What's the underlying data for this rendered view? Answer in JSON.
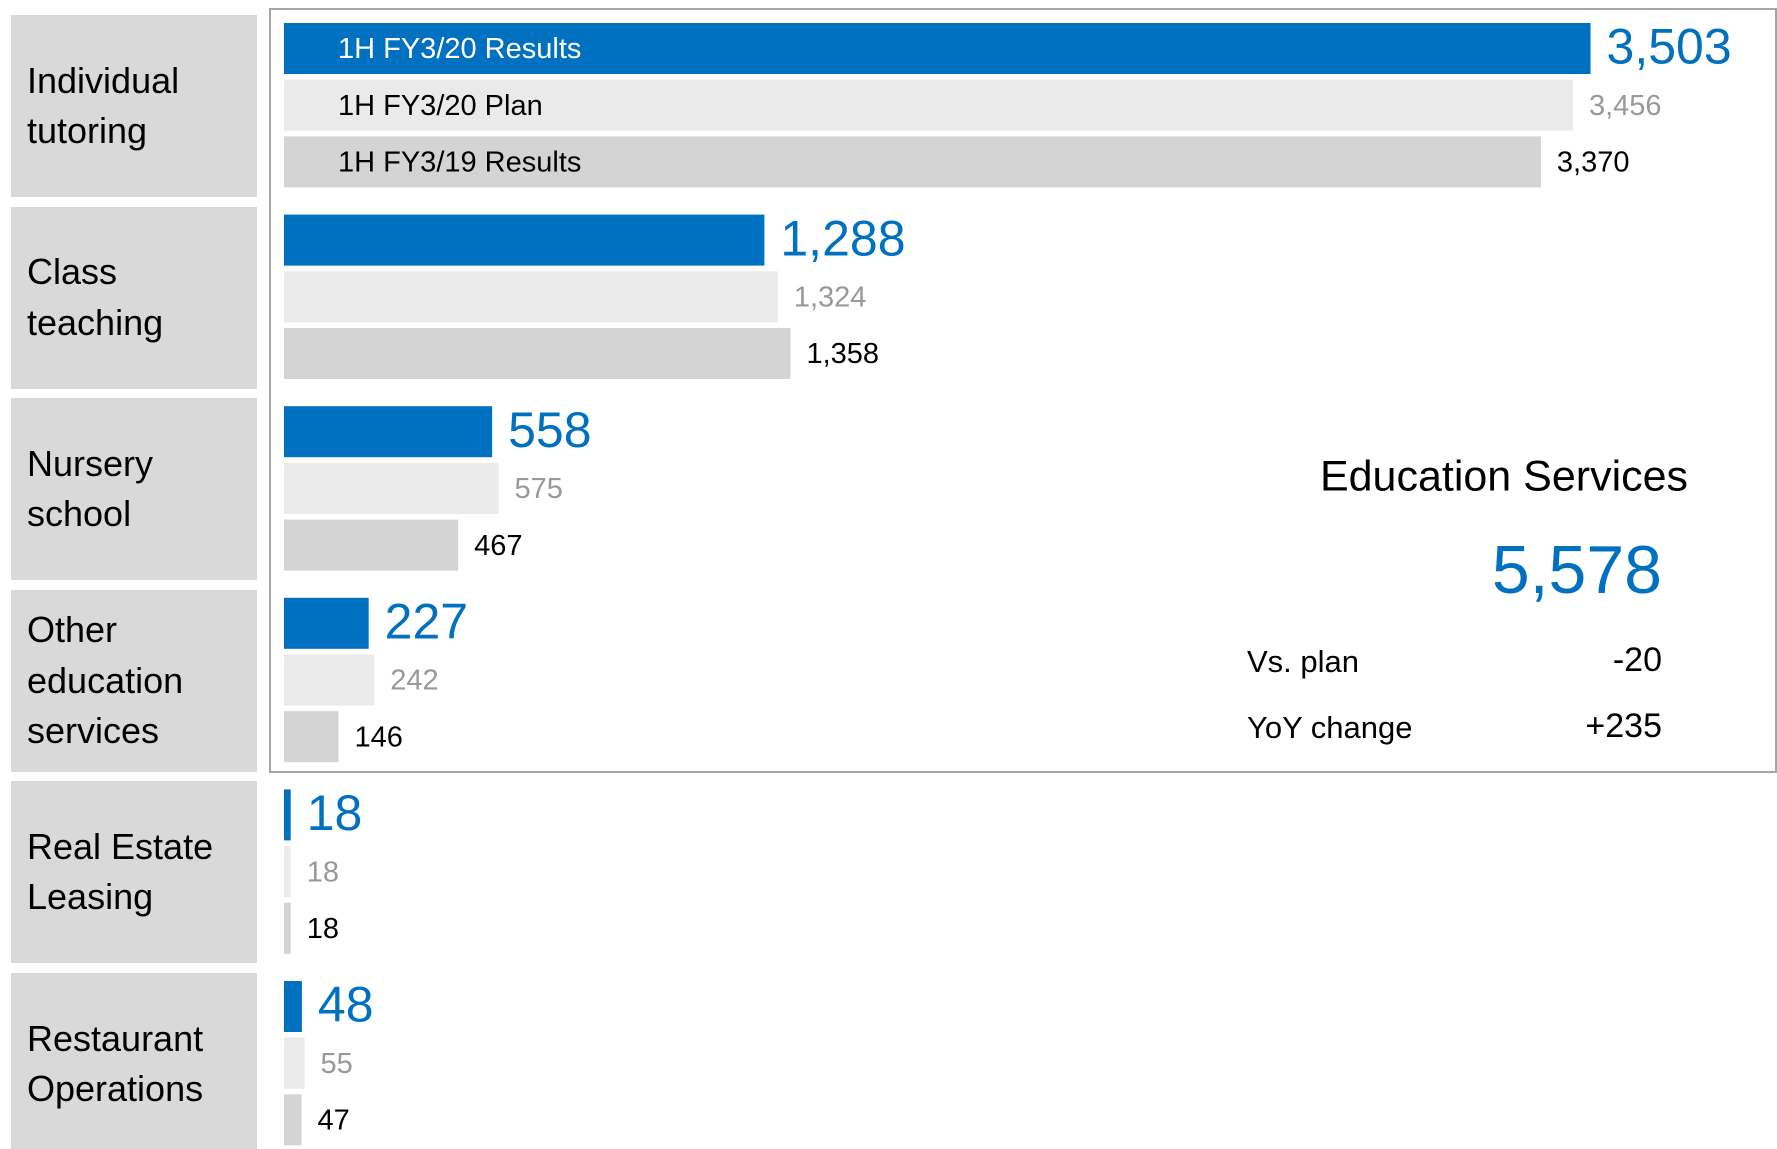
{
  "chart_data": {
    "type": "bar",
    "orientation": "horizontal",
    "categories": [
      "Individual tutoring",
      "Class teaching",
      "Nursery school",
      "Other education services",
      "Real Estate Leasing",
      "Restaurant Operations"
    ],
    "series": [
      {
        "name": "1H FY3/20 Results",
        "color": "#0070c0",
        "label_color": "#0070c0",
        "values": [
          3503,
          1288,
          558,
          227,
          18,
          48
        ],
        "value_labels": [
          "3,503",
          "1,288",
          "558",
          "227",
          "18",
          "48"
        ]
      },
      {
        "name": "1H FY3/20 Plan",
        "color": "#eaeaea",
        "label_color": "#999999",
        "values": [
          3456,
          1324,
          575,
          242,
          18,
          55
        ],
        "value_labels": [
          "3,456",
          "1,324",
          "575",
          "242",
          "18",
          "55"
        ]
      },
      {
        "name": "1H FY3/19 Results",
        "color": "#d4d4d4",
        "label_color": "#000000",
        "values": [
          3370,
          1358,
          467,
          146,
          18,
          47
        ],
        "value_labels": [
          "3,370",
          "1,358",
          "467",
          "146",
          "18",
          "47"
        ]
      }
    ],
    "xlim": [
      0,
      3700
    ],
    "summary": {
      "title": "Education Services",
      "total": "5,578",
      "rows": [
        {
          "label": "Vs. plan",
          "value": "-20"
        },
        {
          "label": "YoY change",
          "value": "+235"
        }
      ]
    }
  }
}
